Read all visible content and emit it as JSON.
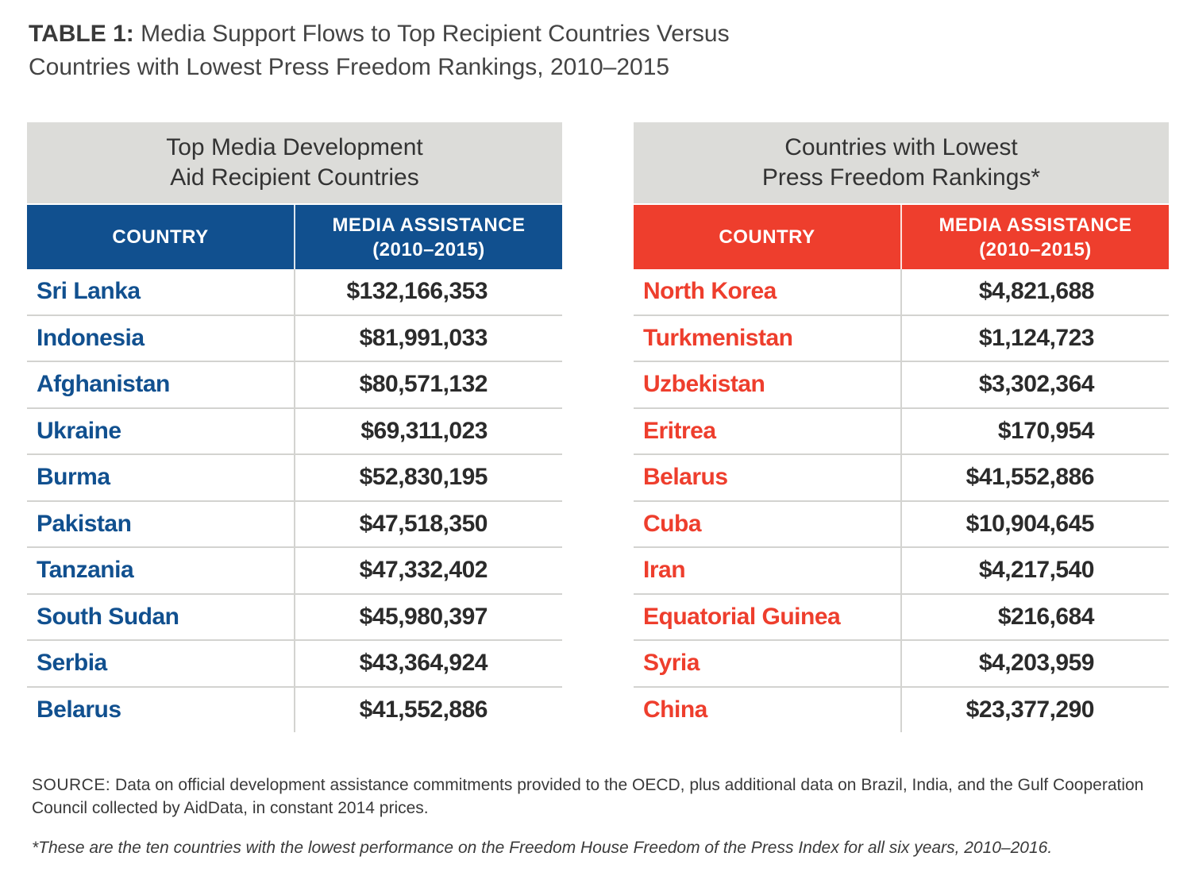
{
  "title": {
    "label": "TABLE 1:",
    "line1": "Media Support Flows to Top Recipient Countries Versus",
    "line2": "Countries with Lowest Press Freedom Rankings, 2010–2015"
  },
  "colors": {
    "blue": "#11508f",
    "red": "#ee3e2d",
    "header_gray": "#dcdcd9"
  },
  "chart_data": [
    {
      "type": "table",
      "title": "Top Media Development Aid Recipient Countries",
      "title_lines": [
        "Top Media Development",
        "Aid Recipient Countries"
      ],
      "columns": [
        "COUNTRY",
        "MEDIA ASSISTANCE (2010–2015)"
      ],
      "column_head_lines": {
        "country": "COUNTRY",
        "assist_line1": "MEDIA ASSISTANCE",
        "assist_line2": "(2010–2015)"
      },
      "rows": [
        {
          "country": "Sri Lanka",
          "value": "$132,166,353"
        },
        {
          "country": "Indonesia",
          "value": "$81,991,033"
        },
        {
          "country": "Afghanistan",
          "value": "$80,571,132"
        },
        {
          "country": "Ukraine",
          "value": "$69,311,023"
        },
        {
          "country": "Burma",
          "value": "$52,830,195"
        },
        {
          "country": "Pakistan",
          "value": "$47,518,350"
        },
        {
          "country": "Tanzania",
          "value": "$47,332,402"
        },
        {
          "country": "South Sudan",
          "value": "$45,980,397"
        },
        {
          "country": "Serbia",
          "value": "$43,364,924"
        },
        {
          "country": "Belarus",
          "value": "$41,552,886"
        }
      ]
    },
    {
      "type": "table",
      "title": "Countries with Lowest Press Freedom Rankings*",
      "title_lines": [
        "Countries with Lowest",
        "Press Freedom Rankings*"
      ],
      "columns": [
        "COUNTRY",
        "MEDIA ASSISTANCE (2010–2015)"
      ],
      "column_head_lines": {
        "country": "COUNTRY",
        "assist_line1": "MEDIA ASSISTANCE",
        "assist_line2": "(2010–2015)"
      },
      "rows": [
        {
          "country": "North Korea",
          "value": "$4,821,688"
        },
        {
          "country": "Turkmenistan",
          "value": "$1,124,723"
        },
        {
          "country": "Uzbekistan",
          "value": "$3,302,364"
        },
        {
          "country": "Eritrea",
          "value": "$170,954"
        },
        {
          "country": "Belarus",
          "value": "$41,552,886"
        },
        {
          "country": "Cuba",
          "value": "$10,904,645"
        },
        {
          "country": "Iran",
          "value": "$4,217,540"
        },
        {
          "country": "Equatorial Guinea",
          "value": "$216,684"
        },
        {
          "country": "Syria",
          "value": "$4,203,959"
        },
        {
          "country": "China",
          "value": "$23,377,290"
        }
      ]
    }
  ],
  "source": {
    "label": "SOURCE:",
    "text": "Data on official development assistance commitments provided to the OECD, plus additional data on Brazil, India, and the Gulf Cooperation Council collected by AidData, in constant 2014 prices."
  },
  "footnote": "*These are the ten countries with the lowest performance on the Freedom House Freedom of the Press Index for all six years, 2010–2016."
}
